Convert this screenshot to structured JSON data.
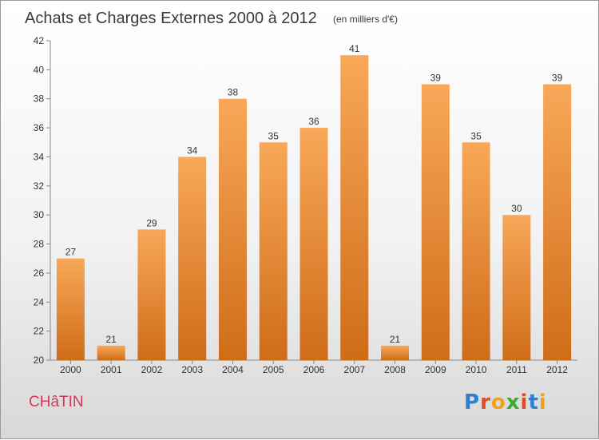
{
  "header": {
    "title": "Achats et Charges Externes 2000 à 2012",
    "subtitle": "(en milliers d'€)"
  },
  "footer": {
    "commune": "CHâTIN",
    "logo_letters": [
      "P",
      "r",
      "o",
      "x",
      "i",
      "t",
      "i"
    ],
    "logo_colors": [
      "#2f7fd1",
      "#e04b2a",
      "#f0a020",
      "#3aaa35",
      "#e04b2a",
      "#2f7fd1",
      "#f0a020"
    ]
  },
  "chart_data": {
    "type": "bar",
    "categories": [
      "2000",
      "2001",
      "2002",
      "2003",
      "2004",
      "2005",
      "2006",
      "2007",
      "2008",
      "2009",
      "2010",
      "2011",
      "2012"
    ],
    "values": [
      27,
      21,
      29,
      34,
      38,
      35,
      36,
      41,
      21,
      39,
      35,
      30,
      39
    ],
    "ylim": [
      20,
      42
    ],
    "yticks": [
      20,
      22,
      24,
      26,
      28,
      30,
      32,
      34,
      36,
      38,
      40,
      42
    ],
    "grid": false,
    "bar_color_top": "#f8a858",
    "bar_color_bottom": "#cf6c18"
  }
}
